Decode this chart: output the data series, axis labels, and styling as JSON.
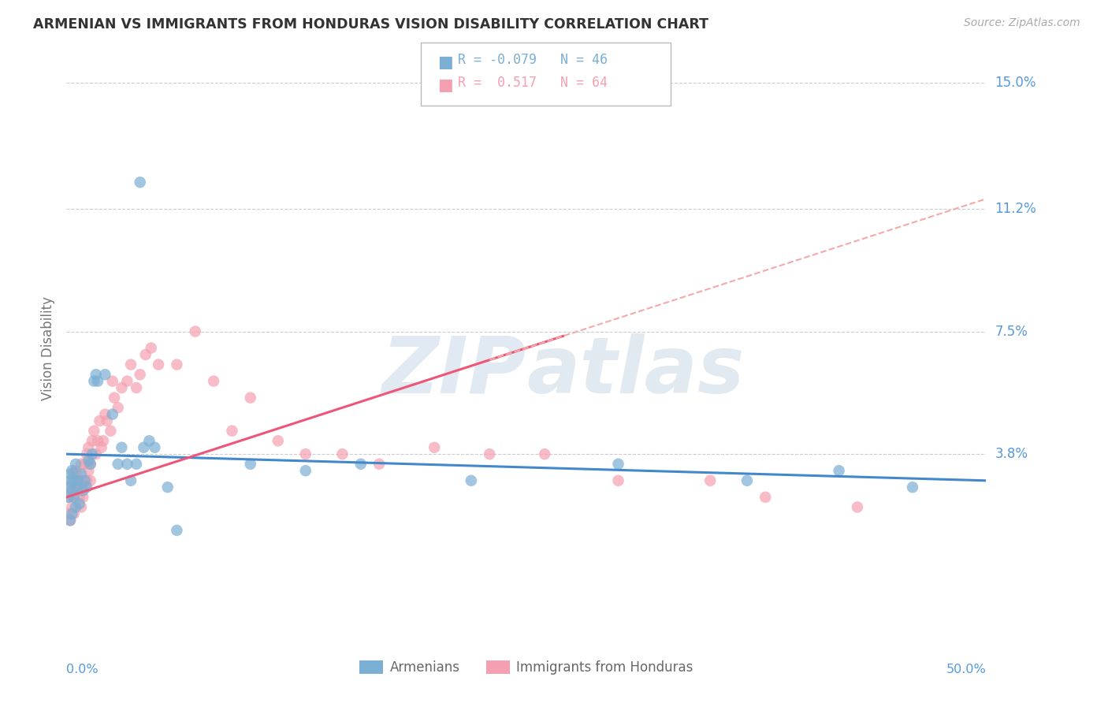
{
  "title": "ARMENIAN VS IMMIGRANTS FROM HONDURAS VISION DISABILITY CORRELATION CHART",
  "source": "Source: ZipAtlas.com",
  "ylabel": "Vision Disability",
  "yticks": [
    0.0,
    0.038,
    0.075,
    0.112,
    0.15
  ],
  "ytick_labels": [
    "",
    "3.8%",
    "7.5%",
    "11.2%",
    "15.0%"
  ],
  "xmin": 0.0,
  "xmax": 0.5,
  "ymin": -0.018,
  "ymax": 0.158,
  "armenian_color": "#7BAFD4",
  "honduras_color": "#F4A0B0",
  "trendline_armenian_color": "#4488CC",
  "trendline_honduras_color": "#EE5577",
  "dashed_line_color": "#F4AAAA",
  "watermark_color": "#AABBDD",
  "label_armenians": "Armenians",
  "label_honduras": "Immigrants from Honduras",
  "grid_color": "#CCCCCC",
  "axis_label_color": "#5599DD",
  "title_color": "#333333",
  "source_color": "#AAAAAA",
  "legend_box_color": "#BBBBBB",
  "R1": -0.079,
  "N1": 46,
  "R2": 0.517,
  "N2": 64,
  "armenian_scatter_x": [
    0.001,
    0.001,
    0.002,
    0.002,
    0.002,
    0.003,
    0.003,
    0.003,
    0.004,
    0.004,
    0.005,
    0.005,
    0.006,
    0.006,
    0.007,
    0.008,
    0.009,
    0.01,
    0.011,
    0.012,
    0.013,
    0.014,
    0.015,
    0.016,
    0.017,
    0.021,
    0.025,
    0.028,
    0.03,
    0.033,
    0.035,
    0.038,
    0.04,
    0.042,
    0.045,
    0.048,
    0.055,
    0.06,
    0.1,
    0.13,
    0.16,
    0.22,
    0.3,
    0.37,
    0.42,
    0.46
  ],
  "armenian_scatter_y": [
    0.025,
    0.028,
    0.018,
    0.03,
    0.032,
    0.02,
    0.027,
    0.033,
    0.025,
    0.03,
    0.022,
    0.035,
    0.028,
    0.03,
    0.023,
    0.032,
    0.027,
    0.03,
    0.028,
    0.036,
    0.035,
    0.038,
    0.06,
    0.062,
    0.06,
    0.062,
    0.05,
    0.035,
    0.04,
    0.035,
    0.03,
    0.035,
    0.12,
    0.04,
    0.042,
    0.04,
    0.028,
    0.015,
    0.035,
    0.033,
    0.035,
    0.03,
    0.035,
    0.03,
    0.033,
    0.028
  ],
  "honduras_scatter_x": [
    0.001,
    0.001,
    0.002,
    0.002,
    0.003,
    0.003,
    0.004,
    0.004,
    0.004,
    0.005,
    0.005,
    0.006,
    0.006,
    0.007,
    0.007,
    0.008,
    0.008,
    0.009,
    0.009,
    0.01,
    0.01,
    0.011,
    0.011,
    0.012,
    0.012,
    0.013,
    0.013,
    0.014,
    0.015,
    0.016,
    0.017,
    0.018,
    0.019,
    0.02,
    0.021,
    0.022,
    0.024,
    0.025,
    0.026,
    0.028,
    0.03,
    0.033,
    0.035,
    0.038,
    0.04,
    0.043,
    0.046,
    0.05,
    0.06,
    0.07,
    0.08,
    0.09,
    0.1,
    0.115,
    0.13,
    0.15,
    0.17,
    0.2,
    0.23,
    0.26,
    0.3,
    0.35,
    0.38,
    0.43
  ],
  "honduras_scatter_y": [
    0.02,
    0.025,
    0.018,
    0.028,
    0.022,
    0.03,
    0.02,
    0.025,
    0.032,
    0.028,
    0.033,
    0.027,
    0.032,
    0.025,
    0.03,
    0.022,
    0.035,
    0.025,
    0.03,
    0.028,
    0.035,
    0.03,
    0.038,
    0.033,
    0.04,
    0.03,
    0.035,
    0.042,
    0.045,
    0.038,
    0.042,
    0.048,
    0.04,
    0.042,
    0.05,
    0.048,
    0.045,
    0.06,
    0.055,
    0.052,
    0.058,
    0.06,
    0.065,
    0.058,
    0.062,
    0.068,
    0.07,
    0.065,
    0.065,
    0.075,
    0.06,
    0.045,
    0.055,
    0.042,
    0.038,
    0.038,
    0.035,
    0.04,
    0.038,
    0.038,
    0.03,
    0.03,
    0.025,
    0.022
  ]
}
